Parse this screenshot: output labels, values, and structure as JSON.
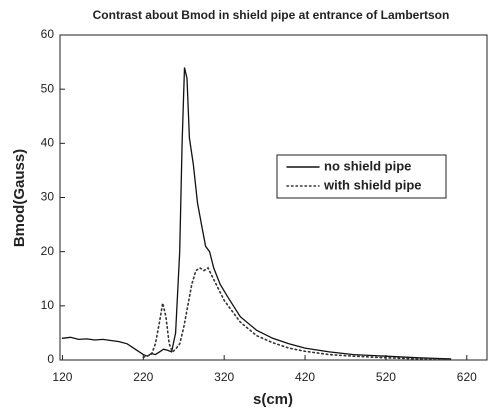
{
  "chart_data": {
    "type": "line",
    "title": "Contrast about Bmod in shield pipe at entrance of Lambertson",
    "x_label": "s(cm)",
    "y_label": "Bmod(Gauss)",
    "xlim": [
      117,
      645
    ],
    "xticks": [
      120,
      220,
      320,
      420,
      520,
      620
    ],
    "ylim": [
      0,
      60
    ],
    "yticks": [
      0,
      10,
      20,
      30,
      40,
      50,
      60
    ],
    "legend": "right",
    "series": [
      {
        "name": "no shield pipe",
        "color": "#111111",
        "style": "solid",
        "x": [
          120,
          130,
          140,
          150,
          160,
          170,
          180,
          190,
          200,
          210,
          220,
          225,
          230,
          235,
          240,
          245,
          250,
          255,
          260,
          265,
          268,
          271,
          274,
          277,
          282,
          287,
          292,
          297,
          302,
          307,
          315,
          325,
          340,
          360,
          380,
          400,
          420,
          450,
          480,
          520,
          560,
          600
        ],
        "values": [
          4,
          4.2,
          3.8,
          3.9,
          3.7,
          3.8,
          3.6,
          3.4,
          3.0,
          2.0,
          1.0,
          0.7,
          1.2,
          1.0,
          1.5,
          2.0,
          1.8,
          1.5,
          5,
          20,
          40,
          54,
          52,
          41,
          36,
          29,
          25,
          21,
          20,
          17,
          14,
          11.5,
          8,
          5.5,
          4,
          3,
          2.2,
          1.5,
          1,
          0.7,
          0.4,
          0.2
        ]
      },
      {
        "name": "with shield pipe",
        "color": "#333333",
        "style": "dotted",
        "x": [
          220,
          230,
          235,
          240,
          244,
          248,
          252,
          256,
          260,
          265,
          270,
          275,
          280,
          285,
          290,
          295,
          300,
          305,
          310,
          320,
          330,
          340,
          360,
          380,
          400,
          420,
          450,
          480,
          520,
          560,
          600
        ],
        "values": [
          0.5,
          1,
          3,
          7,
          10.5,
          8,
          3,
          1.5,
          2,
          3,
          6,
          10,
          14,
          16.5,
          17,
          16.5,
          17,
          15.5,
          14,
          11,
          9,
          7,
          4.5,
          3.2,
          2.2,
          1.6,
          1.0,
          0.7,
          0.4,
          0.2,
          0.1
        ]
      }
    ]
  }
}
